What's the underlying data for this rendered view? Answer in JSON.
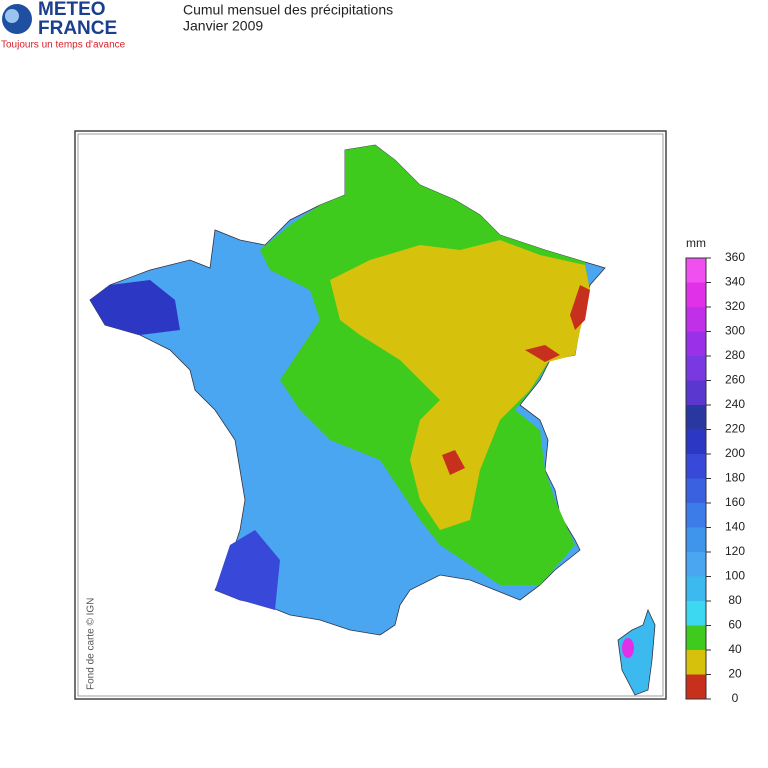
{
  "header": {
    "logo": {
      "line1": "METEO",
      "line2": "FRANCE",
      "slogan": "Toujours un temps d'avance"
    },
    "title": "Cumul mensuel des précipitations",
    "subtitle": "Janvier 2009"
  },
  "map": {
    "credit": "Fond de carte © IGN"
  },
  "legend": {
    "unit": "mm",
    "ticks": [
      0,
      20,
      40,
      60,
      80,
      100,
      120,
      140,
      160,
      180,
      200,
      220,
      240,
      260,
      280,
      300,
      320,
      340,
      360
    ],
    "colors": [
      "#c8301e",
      "#d6c10c",
      "#3ecb1e",
      "#3cd8f2",
      "#3cbaf0",
      "#4aa6f0",
      "#3f94ec",
      "#3c7ce8",
      "#3a62e0",
      "#3848d8",
      "#2c38c4",
      "#2838a0",
      "#5a38d0",
      "#7a38e0",
      "#9a30e8",
      "#c030e8",
      "#e030e8",
      "#f050f0"
    ]
  }
}
